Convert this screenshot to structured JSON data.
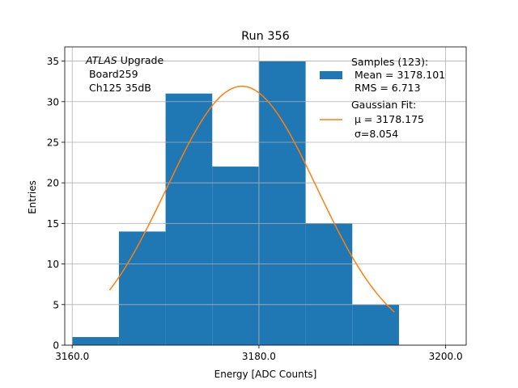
{
  "chart_data": {
    "type": "bar",
    "title": "Run 356",
    "xlabel": "Energy [ADC Counts]",
    "ylabel": "Entries",
    "xlim": [
      3159.2,
      3202.2
    ],
    "ylim": [
      0,
      36.75
    ],
    "xticks": [
      3160,
      3180,
      3200
    ],
    "xtick_labels": [
      "3160.0",
      "3180.0",
      "3200.0"
    ],
    "yticks": [
      0,
      5,
      10,
      15,
      20,
      25,
      30,
      35
    ],
    "ytick_labels": [
      "0",
      "5",
      "10",
      "15",
      "20",
      "25",
      "30",
      "35"
    ],
    "grid": true,
    "histogram": {
      "name": "Samples (123):",
      "color": "#1f77b4",
      "bin_edges": [
        3160,
        3165,
        3170,
        3175,
        3180,
        3185,
        3190,
        3195
      ],
      "counts": [
        1,
        14,
        31,
        22,
        35,
        15,
        5
      ]
    },
    "fit": {
      "name": "Gaussian Fit:",
      "color": "#ff7f0e",
      "mu": 3178.175,
      "sigma": 8.054,
      "amplitude": 31.9,
      "x_range": [
        3164,
        3194.5
      ]
    },
    "legend": {
      "placement": "top-right",
      "entries": [
        {
          "kind": "patch",
          "lines": [
            "Samples (123):",
            " Mean = 3178.101",
            " RMS = 6.713"
          ]
        },
        {
          "kind": "line",
          "lines": [
            "Gaussian Fit:",
            " μ = 3178.175",
            " σ=8.054"
          ]
        }
      ]
    },
    "annotation": {
      "italic": "ATLAS",
      "rest": " Upgrade",
      "lines": [
        " Board259",
        " Ch125 35dB"
      ]
    }
  }
}
